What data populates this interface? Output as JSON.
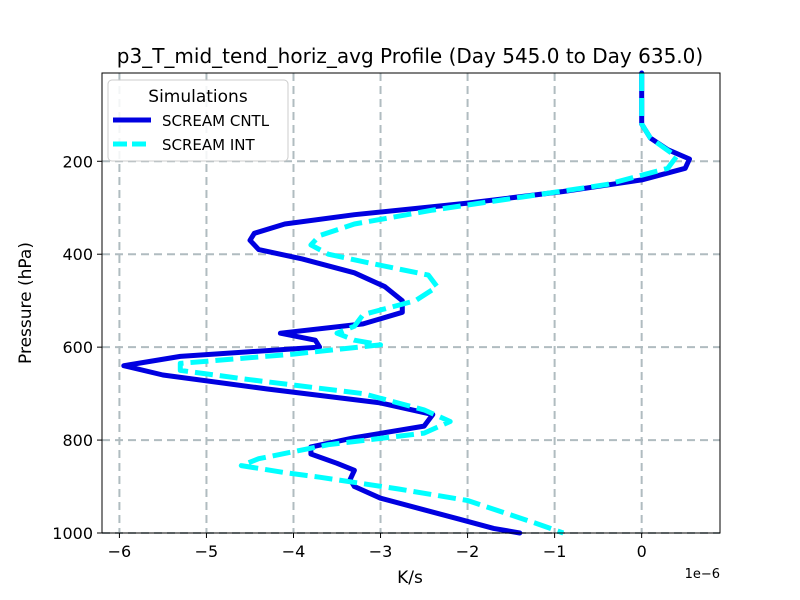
{
  "chart_data": {
    "type": "line",
    "title": "p3_T_mid_tend_horiz_avg Profile (Day 545.0 to Day 635.0)",
    "xlabel": "K/s",
    "ylabel": "Pressure (hPa)",
    "x_offset_label": "1e−6",
    "xlim": [
      -6.2,
      0.9
    ],
    "ylim": [
      1000,
      10
    ],
    "y_inverted": true,
    "grid": true,
    "xticks": [
      -6,
      -5,
      -4,
      -3,
      -2,
      -1,
      0
    ],
    "xtick_labels": [
      "−6",
      "−5",
      "−4",
      "−3",
      "−2",
      "−1",
      "0"
    ],
    "yticks": [
      200,
      400,
      600,
      800,
      1000
    ],
    "ytick_labels": [
      "200",
      "400",
      "600",
      "800",
      "1000"
    ],
    "legend": {
      "title": "Simulations",
      "position": "top-left"
    },
    "series": [
      {
        "name": "SCREAM CNTL",
        "color": "#0000e0",
        "style": "solid",
        "points": [
          [
            0,
            10
          ],
          [
            0,
            120
          ],
          [
            0.1,
            150
          ],
          [
            0.3,
            175
          ],
          [
            0.55,
            195
          ],
          [
            0.5,
            215
          ],
          [
            0.0,
            240
          ],
          [
            -0.9,
            265
          ],
          [
            -2.0,
            290
          ],
          [
            -3.3,
            315
          ],
          [
            -4.1,
            335
          ],
          [
            -4.45,
            355
          ],
          [
            -4.5,
            370
          ],
          [
            -4.4,
            390
          ],
          [
            -3.9,
            410
          ],
          [
            -3.3,
            440
          ],
          [
            -2.95,
            470
          ],
          [
            -2.75,
            500
          ],
          [
            -2.75,
            525
          ],
          [
            -3.2,
            550
          ],
          [
            -4.15,
            570
          ],
          [
            -3.75,
            585
          ],
          [
            -3.7,
            600
          ],
          [
            -5.3,
            620
          ],
          [
            -5.95,
            640
          ],
          [
            -5.5,
            660
          ],
          [
            -4.3,
            690
          ],
          [
            -3.0,
            720
          ],
          [
            -2.4,
            745
          ],
          [
            -2.5,
            770
          ],
          [
            -3.3,
            795
          ],
          [
            -3.8,
            815
          ],
          [
            -3.8,
            830
          ],
          [
            -3.5,
            850
          ],
          [
            -3.3,
            865
          ],
          [
            -3.35,
            885
          ],
          [
            -3.3,
            900
          ],
          [
            -3.0,
            925
          ],
          [
            -2.5,
            950
          ],
          [
            -2.1,
            970
          ],
          [
            -1.7,
            990
          ],
          [
            -1.4,
            1000
          ]
        ]
      },
      {
        "name": "SCREAM INT",
        "color": "#00ffff",
        "style": "dashed",
        "points": [
          [
            0,
            10
          ],
          [
            0,
            120
          ],
          [
            0.1,
            150
          ],
          [
            0.4,
            190
          ],
          [
            0.3,
            215
          ],
          [
            -0.4,
            250
          ],
          [
            -1.3,
            275
          ],
          [
            -2.4,
            305
          ],
          [
            -3.3,
            335
          ],
          [
            -3.7,
            360
          ],
          [
            -3.8,
            380
          ],
          [
            -3.6,
            400
          ],
          [
            -3.1,
            420
          ],
          [
            -2.45,
            445
          ],
          [
            -2.35,
            470
          ],
          [
            -2.6,
            500
          ],
          [
            -3.2,
            530
          ],
          [
            -3.3,
            555
          ],
          [
            -3.5,
            570
          ],
          [
            -3.3,
            585
          ],
          [
            -3.0,
            595
          ],
          [
            -4.0,
            615
          ],
          [
            -5.3,
            635
          ],
          [
            -5.3,
            650
          ],
          [
            -4.5,
            670
          ],
          [
            -3.2,
            700
          ],
          [
            -2.5,
            735
          ],
          [
            -2.2,
            760
          ],
          [
            -2.5,
            785
          ],
          [
            -3.6,
            810
          ],
          [
            -4.4,
            840
          ],
          [
            -4.6,
            855
          ],
          [
            -4.1,
            870
          ],
          [
            -3.7,
            880
          ],
          [
            -2.8,
            905
          ],
          [
            -2.0,
            930
          ],
          [
            -1.6,
            955
          ],
          [
            -1.2,
            980
          ],
          [
            -0.9,
            1000
          ]
        ]
      }
    ]
  }
}
